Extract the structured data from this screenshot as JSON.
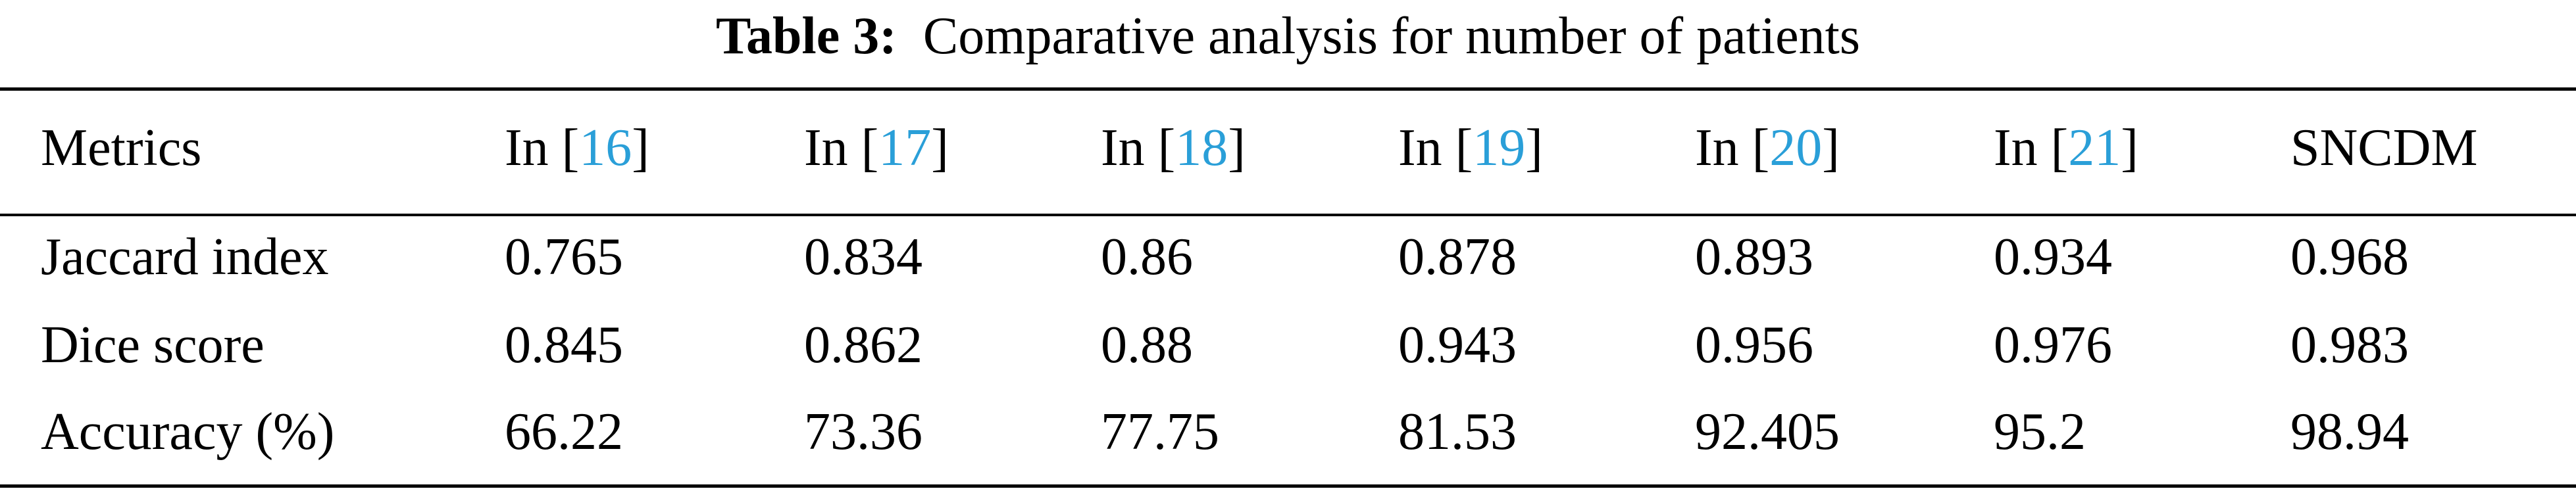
{
  "caption": {
    "label": "Table 3:",
    "text": "Comparative analysis for number of patients"
  },
  "header": {
    "metrics": "Metrics",
    "cols": [
      {
        "prefix": "In [",
        "ref": "16",
        "suffix": "]"
      },
      {
        "prefix": "In [",
        "ref": "17",
        "suffix": "]"
      },
      {
        "prefix": "In [",
        "ref": "18",
        "suffix": "]"
      },
      {
        "prefix": "In [",
        "ref": "19",
        "suffix": "]"
      },
      {
        "prefix": "In [",
        "ref": "20",
        "suffix": "]"
      },
      {
        "prefix": "In [",
        "ref": "21",
        "suffix": "]"
      }
    ],
    "proposed": "SNCDM"
  },
  "rows": [
    {
      "metric": "Jaccard index",
      "values": [
        "0.765",
        "0.834",
        "0.86",
        "0.878",
        "0.893",
        "0.934",
        "0.968"
      ]
    },
    {
      "metric": "Dice score",
      "values": [
        "0.845",
        "0.862",
        "0.88",
        "0.943",
        "0.956",
        "0.976",
        "0.983"
      ]
    },
    {
      "metric": "Accuracy (%)",
      "values": [
        "66.22",
        "73.36",
        "77.75",
        "81.53",
        "92.405",
        "95.2",
        "98.94"
      ]
    }
  ],
  "colors": {
    "reference_link": "#2a9fd8",
    "text": "#000000"
  }
}
